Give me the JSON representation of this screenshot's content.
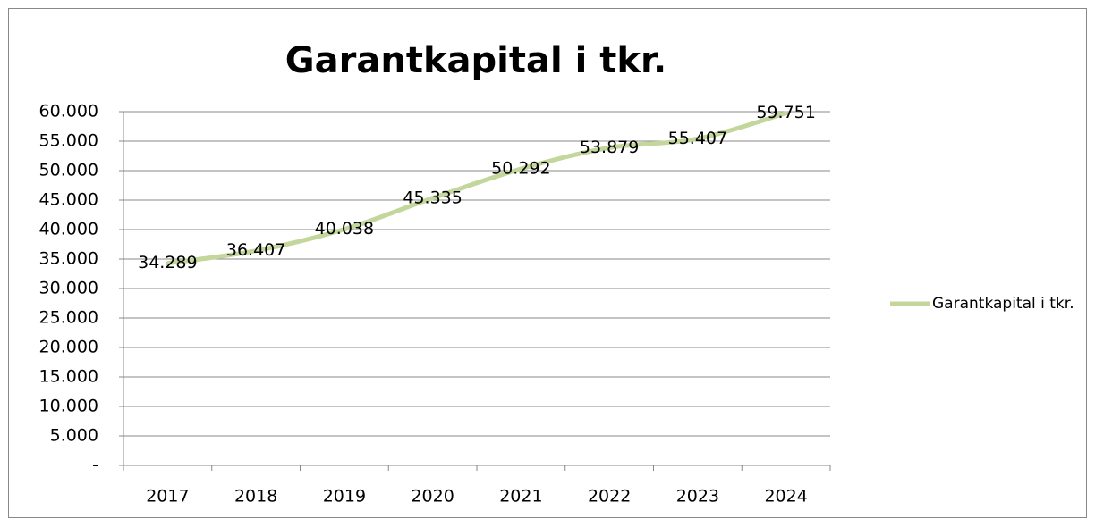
{
  "chart_data": {
    "type": "line",
    "title": "Garantkapital i tkr.",
    "categories": [
      "2017",
      "2018",
      "2019",
      "2020",
      "2021",
      "2022",
      "2023",
      "2024"
    ],
    "series": [
      {
        "name": "Garantkapital i tkr.",
        "color": "#c3d69b",
        "values": [
          34289,
          36407,
          40038,
          45335,
          50292,
          53879,
          55407,
          59751
        ],
        "value_labels": [
          "34.289",
          "36.407",
          "40.038",
          "45.335",
          "50.292",
          "53.879",
          "55.407",
          "59.751"
        ]
      }
    ],
    "ylim": [
      0,
      60000
    ],
    "yticks": [
      {
        "value": 0,
        "label": "-"
      },
      {
        "value": 5000,
        "label": "5.000"
      },
      {
        "value": 10000,
        "label": "10.000"
      },
      {
        "value": 15000,
        "label": "15.000"
      },
      {
        "value": 20000,
        "label": "20.000"
      },
      {
        "value": 25000,
        "label": "25.000"
      },
      {
        "value": 30000,
        "label": "30.000"
      },
      {
        "value": 35000,
        "label": "35.000"
      },
      {
        "value": 40000,
        "label": "40.000"
      },
      {
        "value": 45000,
        "label": "45.000"
      },
      {
        "value": 50000,
        "label": "50.000"
      },
      {
        "value": 55000,
        "label": "55.000"
      },
      {
        "value": 60000,
        "label": "60.000"
      }
    ],
    "grid": true,
    "legend": "right",
    "smooth": true
  }
}
